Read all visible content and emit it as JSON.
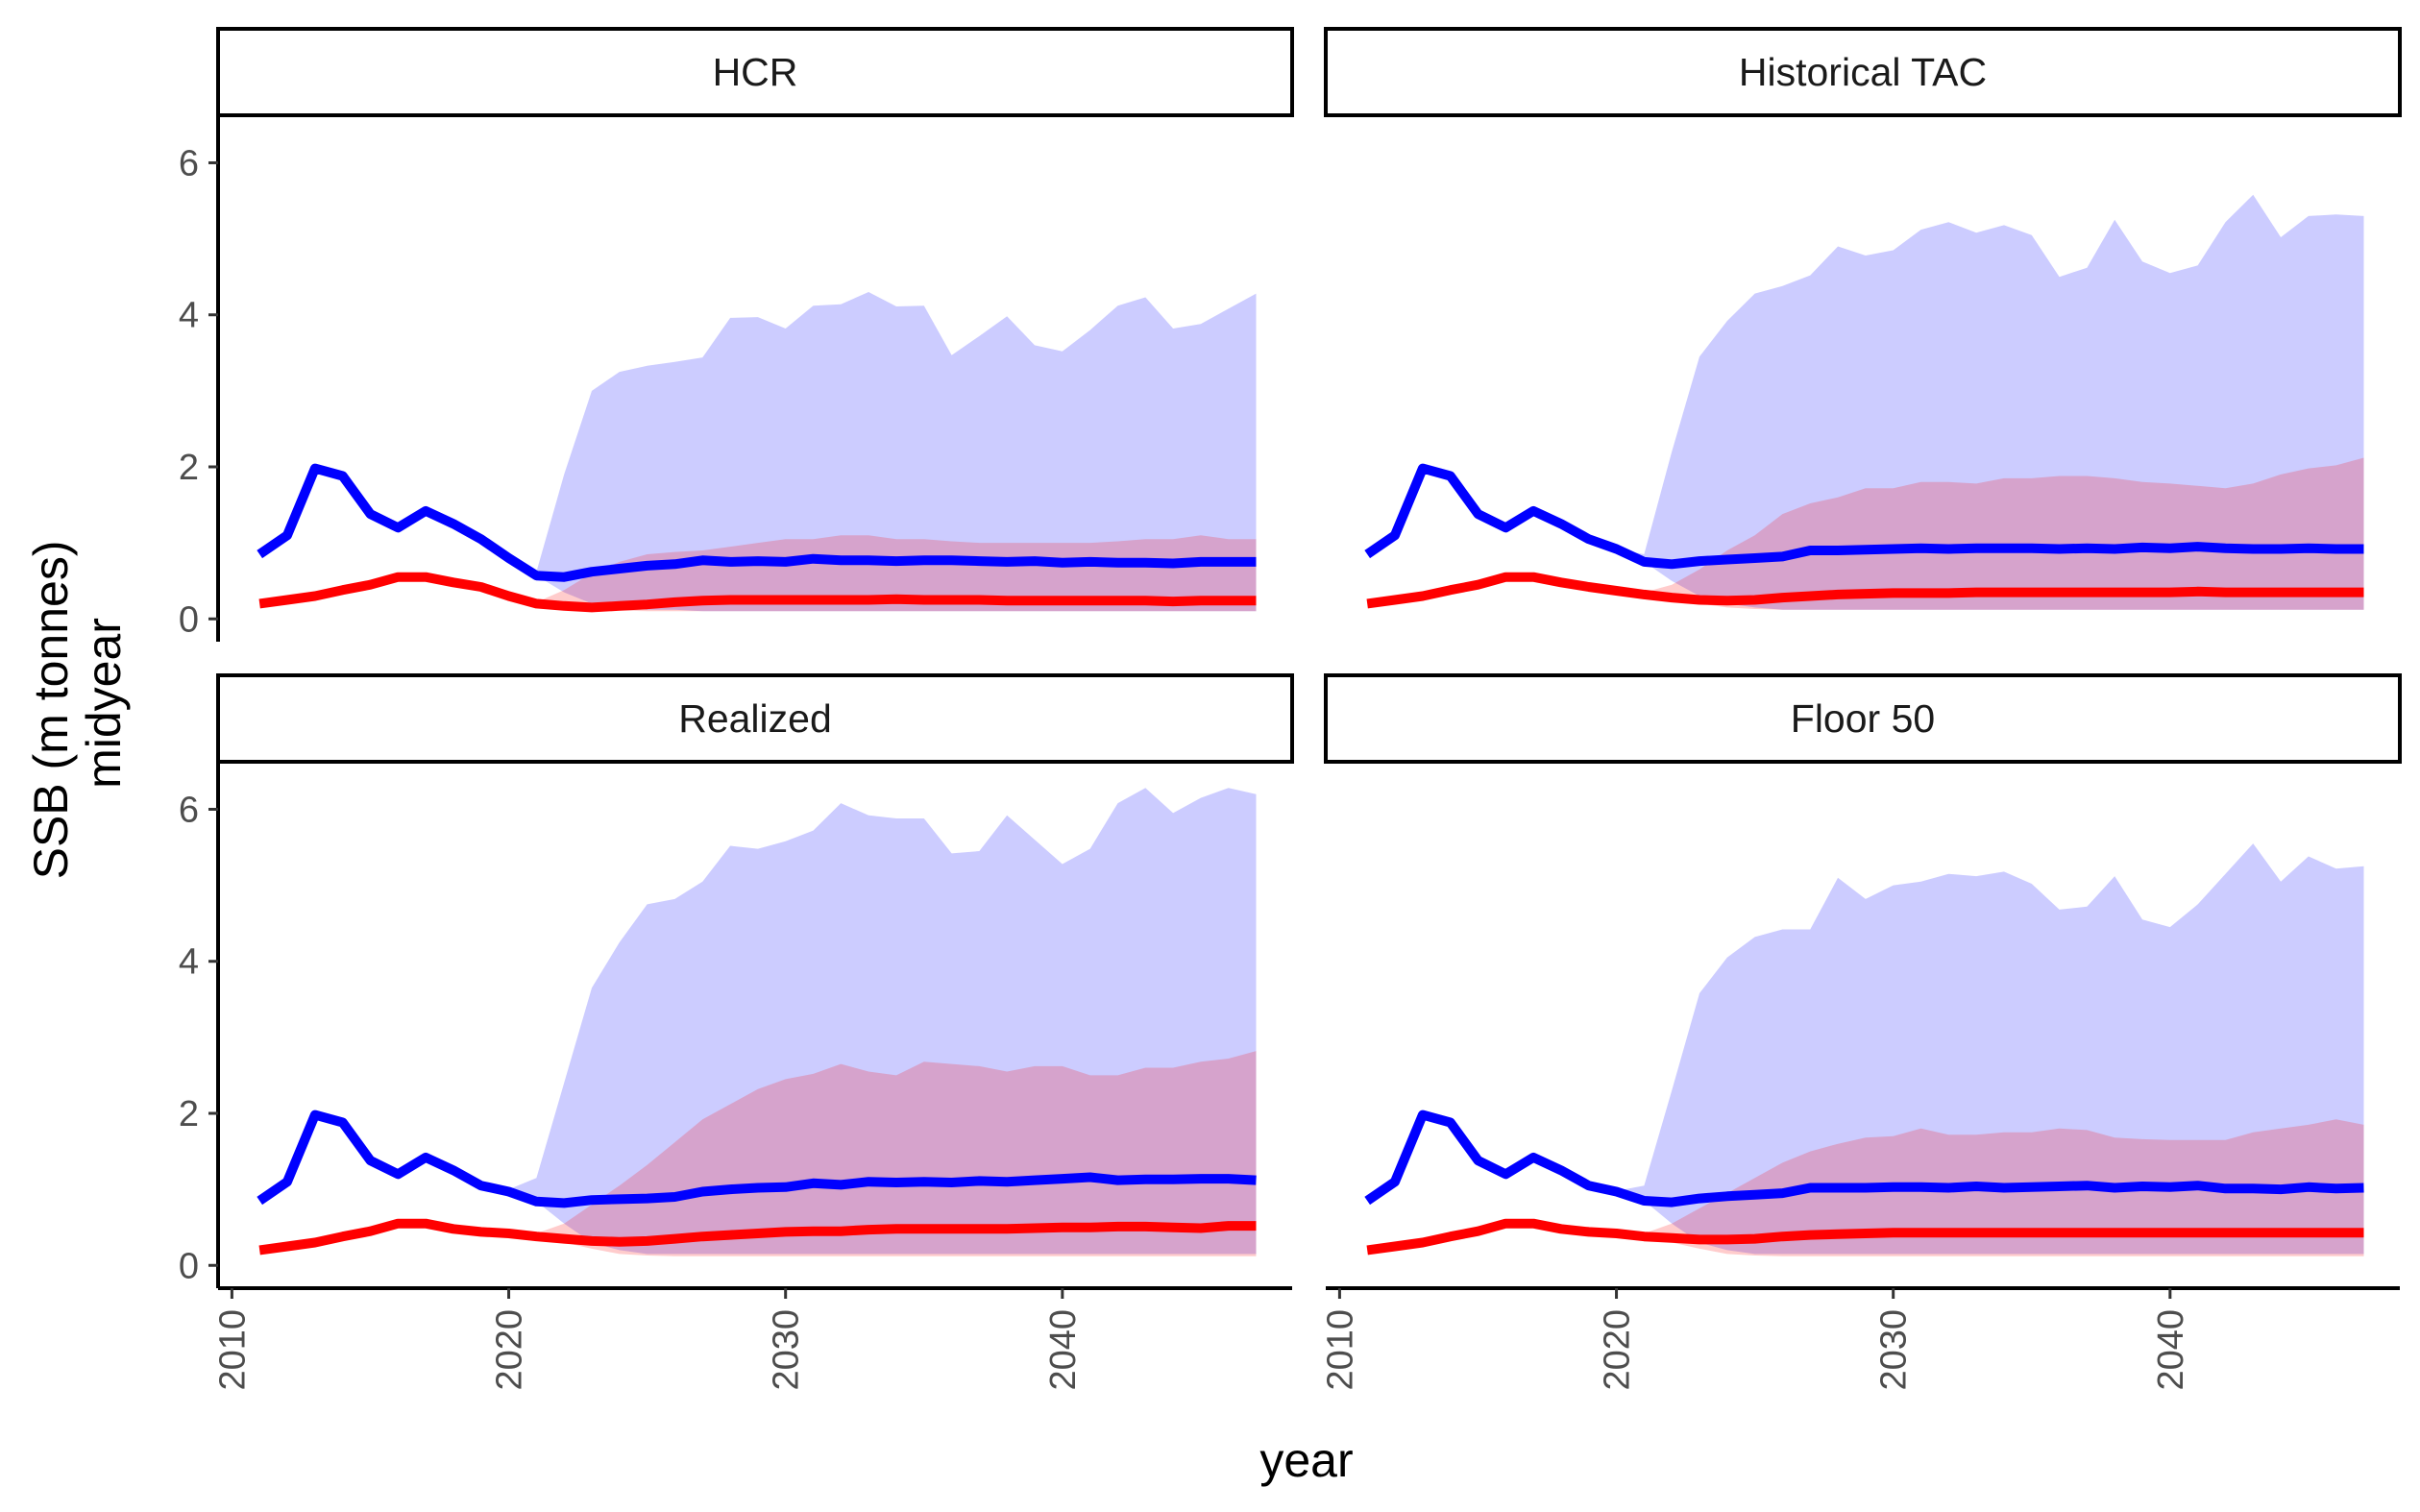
{
  "chart_data": {
    "type": "area",
    "layout": "facet-grid-2x2",
    "xlabel": "year",
    "ylabel_lines": [
      "SSB (m tonnes)",
      "midyear"
    ],
    "xlim": [
      2009.5,
      2048.3
    ],
    "ylim": [
      -0.3,
      6.6
    ],
    "x_ticks": [
      2010,
      2020,
      2030,
      2040
    ],
    "y_ticks": [
      0,
      2,
      4,
      6
    ],
    "grid": false,
    "legend": "none",
    "colors": {
      "blue_line": "#0000ff",
      "blue_band": "#ccccff",
      "red_line": "#ff0000",
      "red_band": "#ff0000",
      "purple_band": "#c8a0d6",
      "overlap_line": "#b0003a",
      "axis": "#000000"
    },
    "x": [
      2011,
      2012,
      2013,
      2014,
      2015,
      2016,
      2017,
      2018,
      2019,
      2020,
      2021,
      2022,
      2023,
      2024,
      2025,
      2026,
      2027,
      2028,
      2029,
      2030,
      2031,
      2032,
      2033,
      2034,
      2035,
      2036,
      2037,
      2038,
      2039,
      2040,
      2041,
      2042,
      2043,
      2044,
      2045,
      2046,
      2047
    ],
    "panels": [
      {
        "title": "HCR",
        "blue_median": [
          0.85,
          1.1,
          1.98,
          1.88,
          1.38,
          1.2,
          1.42,
          1.25,
          1.05,
          0.8,
          0.57,
          0.55,
          0.62,
          0.66,
          0.7,
          0.72,
          0.77,
          0.75,
          0.76,
          0.75,
          0.79,
          0.77,
          0.77,
          0.76,
          0.77,
          0.77,
          0.76,
          0.75,
          0.76,
          0.74,
          0.75,
          0.74,
          0.74,
          0.73,
          0.75,
          0.75,
          0.75
        ],
        "blue_lower": [
          0.85,
          1.1,
          1.98,
          1.88,
          1.38,
          1.2,
          1.42,
          1.25,
          1.05,
          0.8,
          0.57,
          0.35,
          0.2,
          0.15,
          0.12,
          0.12,
          0.1,
          0.1,
          0.1,
          0.1,
          0.1,
          0.1,
          0.1,
          0.1,
          0.1,
          0.1,
          0.1,
          0.1,
          0.1,
          0.1,
          0.1,
          0.1,
          0.1,
          0.1,
          0.1,
          0.1,
          0.1
        ],
        "blue_upper": [
          0.85,
          1.1,
          1.98,
          1.88,
          1.38,
          1.2,
          1.42,
          1.25,
          1.05,
          0.8,
          0.62,
          1.9,
          3.0,
          3.25,
          3.33,
          3.38,
          3.44,
          3.96,
          3.97,
          3.82,
          4.12,
          4.14,
          4.3,
          4.11,
          4.12,
          3.47,
          3.72,
          3.98,
          3.6,
          3.52,
          3.8,
          4.12,
          4.23,
          3.82,
          3.88,
          4.08,
          4.28
        ],
        "red_median": [
          0.2,
          0.25,
          0.3,
          0.38,
          0.45,
          0.55,
          0.55,
          0.48,
          0.42,
          0.3,
          0.2,
          0.17,
          0.15,
          0.17,
          0.19,
          0.22,
          0.24,
          0.25,
          0.25,
          0.25,
          0.25,
          0.25,
          0.25,
          0.26,
          0.25,
          0.25,
          0.25,
          0.24,
          0.24,
          0.24,
          0.24,
          0.24,
          0.24,
          0.23,
          0.24,
          0.24,
          0.24
        ],
        "red_lower": [
          0.2,
          0.25,
          0.3,
          0.38,
          0.45,
          0.55,
          0.55,
          0.48,
          0.42,
          0.3,
          0.2,
          0.15,
          0.12,
          0.11,
          0.1,
          0.1,
          0.1,
          0.1,
          0.1,
          0.1,
          0.1,
          0.1,
          0.1,
          0.1,
          0.1,
          0.1,
          0.1,
          0.1,
          0.1,
          0.1,
          0.1,
          0.1,
          0.1,
          0.1,
          0.1,
          0.1,
          0.1
        ],
        "red_upper": [
          0.2,
          0.25,
          0.3,
          0.38,
          0.45,
          0.55,
          0.55,
          0.48,
          0.42,
          0.3,
          0.22,
          0.38,
          0.6,
          0.75,
          0.85,
          0.88,
          0.9,
          0.95,
          1.0,
          1.05,
          1.05,
          1.1,
          1.1,
          1.05,
          1.05,
          1.02,
          1.0,
          1.0,
          1.0,
          1.0,
          1.0,
          1.02,
          1.05,
          1.05,
          1.1,
          1.05,
          1.05
        ]
      },
      {
        "title": "Historical TAC",
        "blue_median": [
          0.85,
          1.1,
          1.98,
          1.88,
          1.38,
          1.2,
          1.42,
          1.25,
          1.05,
          0.92,
          0.75,
          0.72,
          0.76,
          0.78,
          0.8,
          0.82,
          0.9,
          0.9,
          0.91,
          0.92,
          0.93,
          0.92,
          0.93,
          0.93,
          0.93,
          0.92,
          0.93,
          0.92,
          0.94,
          0.93,
          0.95,
          0.93,
          0.92,
          0.92,
          0.93,
          0.92,
          0.92
        ],
        "blue_lower": [
          0.85,
          1.1,
          1.98,
          1.88,
          1.38,
          1.2,
          1.42,
          1.25,
          1.05,
          0.92,
          0.75,
          0.5,
          0.3,
          0.2,
          0.15,
          0.12,
          0.12,
          0.12,
          0.12,
          0.12,
          0.12,
          0.12,
          0.12,
          0.12,
          0.12,
          0.12,
          0.12,
          0.12,
          0.12,
          0.12,
          0.12,
          0.12,
          0.12,
          0.12,
          0.12,
          0.12,
          0.12
        ],
        "blue_upper": [
          0.85,
          1.1,
          1.98,
          1.88,
          1.38,
          1.2,
          1.42,
          1.25,
          1.05,
          0.92,
          0.85,
          2.2,
          3.45,
          3.92,
          4.28,
          4.38,
          4.52,
          4.9,
          4.78,
          4.85,
          5.12,
          5.22,
          5.08,
          5.18,
          5.05,
          4.5,
          4.62,
          5.25,
          4.7,
          4.55,
          4.65,
          5.22,
          5.58,
          5.02,
          5.3,
          5.32,
          5.3
        ],
        "red_median": [
          0.2,
          0.25,
          0.3,
          0.38,
          0.45,
          0.55,
          0.55,
          0.48,
          0.42,
          0.37,
          0.32,
          0.28,
          0.25,
          0.24,
          0.25,
          0.28,
          0.3,
          0.32,
          0.33,
          0.34,
          0.34,
          0.34,
          0.35,
          0.35,
          0.35,
          0.35,
          0.35,
          0.35,
          0.35,
          0.35,
          0.36,
          0.35,
          0.35,
          0.35,
          0.35,
          0.35,
          0.35
        ],
        "red_lower": [
          0.2,
          0.25,
          0.3,
          0.38,
          0.45,
          0.55,
          0.55,
          0.48,
          0.42,
          0.37,
          0.3,
          0.25,
          0.2,
          0.15,
          0.13,
          0.12,
          0.12,
          0.12,
          0.12,
          0.12,
          0.12,
          0.12,
          0.12,
          0.12,
          0.12,
          0.12,
          0.12,
          0.12,
          0.12,
          0.12,
          0.12,
          0.12,
          0.12,
          0.12,
          0.12,
          0.12,
          0.12
        ],
        "red_upper": [
          0.2,
          0.25,
          0.3,
          0.38,
          0.45,
          0.55,
          0.55,
          0.48,
          0.42,
          0.37,
          0.35,
          0.45,
          0.65,
          0.9,
          1.1,
          1.38,
          1.52,
          1.6,
          1.72,
          1.72,
          1.8,
          1.8,
          1.78,
          1.85,
          1.85,
          1.88,
          1.88,
          1.85,
          1.8,
          1.78,
          1.75,
          1.72,
          1.78,
          1.9,
          1.98,
          2.02,
          2.12
        ]
      },
      {
        "title": "Realized",
        "blue_median": [
          0.85,
          1.1,
          1.98,
          1.88,
          1.38,
          1.2,
          1.42,
          1.25,
          1.05,
          0.97,
          0.84,
          0.82,
          0.86,
          0.87,
          0.88,
          0.9,
          0.97,
          1.0,
          1.02,
          1.03,
          1.08,
          1.06,
          1.1,
          1.09,
          1.1,
          1.09,
          1.11,
          1.1,
          1.12,
          1.14,
          1.16,
          1.12,
          1.13,
          1.13,
          1.14,
          1.14,
          1.12
        ],
        "blue_lower": [
          0.85,
          1.1,
          1.98,
          1.88,
          1.38,
          1.2,
          1.42,
          1.25,
          1.05,
          0.97,
          0.84,
          0.55,
          0.3,
          0.2,
          0.15,
          0.15,
          0.15,
          0.15,
          0.15,
          0.15,
          0.15,
          0.15,
          0.15,
          0.15,
          0.15,
          0.15,
          0.15,
          0.15,
          0.15,
          0.15,
          0.15,
          0.15,
          0.15,
          0.15,
          0.15,
          0.15,
          0.15
        ],
        "blue_upper": [
          0.85,
          1.1,
          1.98,
          1.88,
          1.38,
          1.2,
          1.42,
          1.25,
          1.05,
          1.0,
          1.15,
          2.4,
          3.65,
          4.25,
          4.75,
          4.82,
          5.05,
          5.52,
          5.48,
          5.58,
          5.72,
          6.08,
          5.92,
          5.88,
          5.88,
          5.42,
          5.45,
          5.92,
          5.6,
          5.28,
          5.48,
          6.08,
          6.28,
          5.95,
          6.15,
          6.28,
          6.2
        ],
        "red_median": [
          0.2,
          0.25,
          0.3,
          0.38,
          0.45,
          0.55,
          0.55,
          0.48,
          0.44,
          0.42,
          0.38,
          0.35,
          0.32,
          0.31,
          0.32,
          0.35,
          0.38,
          0.4,
          0.42,
          0.44,
          0.45,
          0.45,
          0.47,
          0.48,
          0.48,
          0.48,
          0.48,
          0.48,
          0.49,
          0.5,
          0.5,
          0.51,
          0.51,
          0.5,
          0.49,
          0.52,
          0.52
        ],
        "red_lower": [
          0.2,
          0.25,
          0.3,
          0.38,
          0.45,
          0.55,
          0.55,
          0.48,
          0.44,
          0.42,
          0.36,
          0.3,
          0.22,
          0.15,
          0.13,
          0.12,
          0.12,
          0.12,
          0.12,
          0.12,
          0.12,
          0.12,
          0.12,
          0.12,
          0.12,
          0.12,
          0.12,
          0.12,
          0.12,
          0.12,
          0.12,
          0.12,
          0.12,
          0.12,
          0.12,
          0.12,
          0.12
        ],
        "red_upper": [
          0.2,
          0.25,
          0.3,
          0.38,
          0.45,
          0.55,
          0.55,
          0.48,
          0.44,
          0.42,
          0.42,
          0.55,
          0.8,
          1.05,
          1.32,
          1.62,
          1.92,
          2.12,
          2.32,
          2.45,
          2.52,
          2.65,
          2.55,
          2.5,
          2.68,
          2.65,
          2.62,
          2.55,
          2.62,
          2.62,
          2.5,
          2.5,
          2.6,
          2.6,
          2.68,
          2.72,
          2.82
        ]
      },
      {
        "title": "Floor 50",
        "blue_median": [
          0.85,
          1.1,
          1.98,
          1.88,
          1.38,
          1.2,
          1.42,
          1.25,
          1.05,
          0.97,
          0.85,
          0.83,
          0.88,
          0.91,
          0.93,
          0.95,
          1.02,
          1.02,
          1.02,
          1.03,
          1.03,
          1.02,
          1.04,
          1.02,
          1.03,
          1.04,
          1.05,
          1.02,
          1.04,
          1.03,
          1.05,
          1.01,
          1.01,
          1.0,
          1.03,
          1.01,
          1.02
        ],
        "blue_lower": [
          0.85,
          1.1,
          1.98,
          1.88,
          1.38,
          1.2,
          1.42,
          1.25,
          1.05,
          0.97,
          0.85,
          0.55,
          0.3,
          0.2,
          0.15,
          0.15,
          0.15,
          0.15,
          0.15,
          0.15,
          0.15,
          0.15,
          0.15,
          0.15,
          0.15,
          0.15,
          0.15,
          0.15,
          0.15,
          0.15,
          0.15,
          0.15,
          0.15,
          0.15,
          0.15,
          0.15,
          0.15
        ],
        "blue_upper": [
          0.85,
          1.1,
          1.98,
          1.88,
          1.38,
          1.2,
          1.42,
          1.25,
          1.05,
          0.98,
          1.05,
          2.3,
          3.58,
          4.05,
          4.32,
          4.42,
          4.42,
          5.1,
          4.82,
          5.0,
          5.05,
          5.15,
          5.12,
          5.18,
          5.02,
          4.68,
          4.72,
          5.12,
          4.55,
          4.45,
          4.75,
          5.15,
          5.55,
          5.05,
          5.38,
          5.22,
          5.25
        ],
        "red_median": [
          0.2,
          0.25,
          0.3,
          0.38,
          0.45,
          0.55,
          0.55,
          0.48,
          0.44,
          0.42,
          0.38,
          0.36,
          0.34,
          0.34,
          0.35,
          0.38,
          0.4,
          0.41,
          0.42,
          0.43,
          0.43,
          0.43,
          0.43,
          0.43,
          0.43,
          0.43,
          0.43,
          0.43,
          0.43,
          0.43,
          0.43,
          0.43,
          0.43,
          0.43,
          0.43,
          0.43,
          0.43
        ],
        "red_lower": [
          0.2,
          0.25,
          0.3,
          0.38,
          0.45,
          0.55,
          0.55,
          0.48,
          0.44,
          0.42,
          0.36,
          0.3,
          0.22,
          0.15,
          0.13,
          0.12,
          0.12,
          0.12,
          0.12,
          0.12,
          0.12,
          0.12,
          0.12,
          0.12,
          0.12,
          0.12,
          0.12,
          0.12,
          0.12,
          0.12,
          0.12,
          0.12,
          0.12,
          0.12,
          0.12,
          0.12,
          0.12
        ],
        "red_upper": [
          0.2,
          0.25,
          0.3,
          0.38,
          0.45,
          0.55,
          0.55,
          0.48,
          0.44,
          0.42,
          0.42,
          0.55,
          0.75,
          0.95,
          1.15,
          1.35,
          1.5,
          1.6,
          1.68,
          1.7,
          1.8,
          1.72,
          1.72,
          1.75,
          1.75,
          1.8,
          1.78,
          1.68,
          1.66,
          1.65,
          1.65,
          1.65,
          1.75,
          1.8,
          1.85,
          1.92,
          1.85
        ]
      }
    ]
  }
}
